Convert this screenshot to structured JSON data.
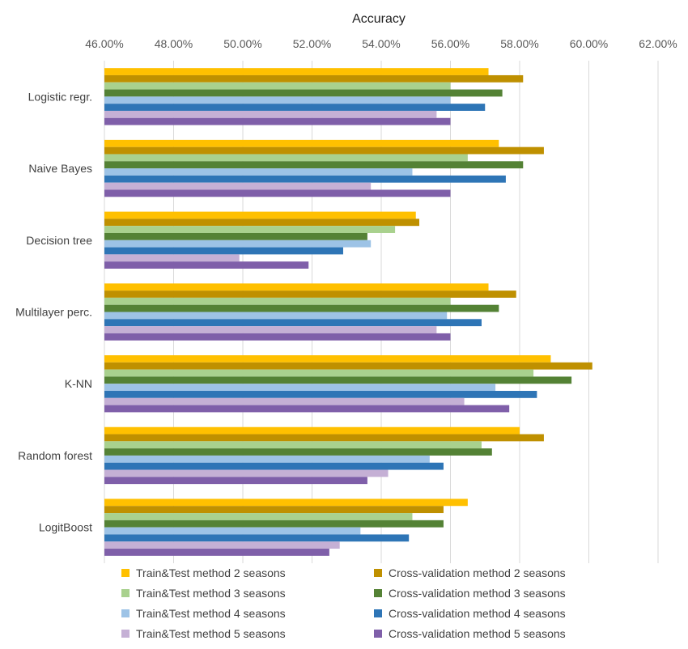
{
  "chart_data": {
    "type": "bar",
    "orientation": "horizontal",
    "title": "Accuracy",
    "xlim": [
      46,
      62
    ],
    "x_ticks": [
      "46.00%",
      "48.00%",
      "50.00%",
      "52.00%",
      "54.00%",
      "56.00%",
      "58.00%",
      "60.00%",
      "62.00%"
    ],
    "x_tick_values": [
      46,
      48,
      50,
      52,
      54,
      56,
      58,
      60,
      62
    ],
    "grid": "vertical",
    "legend_position": "bottom",
    "categories": [
      "Logistic regr.",
      "Naive Bayes",
      "Decision tree",
      "Multilayer perc.",
      "K-NN",
      "Random forest",
      "LogitBoost"
    ],
    "series": [
      {
        "name": "Train&Test method 2 seasons",
        "color": "#FFC000",
        "values": [
          57.1,
          57.4,
          55.0,
          57.1,
          58.9,
          58.0,
          56.5
        ]
      },
      {
        "name": "Cross-validation method 2 seasons",
        "color": "#BF9000",
        "values": [
          58.1,
          58.7,
          55.1,
          57.9,
          60.1,
          58.7,
          55.8
        ]
      },
      {
        "name": "Train&Test method 3 seasons",
        "color": "#A9D18E",
        "values": [
          56.0,
          56.5,
          54.4,
          56.0,
          58.4,
          56.9,
          54.9
        ]
      },
      {
        "name": "Cross-validation method 3 seasons",
        "color": "#548235",
        "values": [
          57.5,
          58.1,
          53.6,
          57.4,
          59.5,
          57.2,
          55.8
        ]
      },
      {
        "name": "Train&Test method 4 seasons",
        "color": "#9DC3E6",
        "values": [
          56.0,
          54.9,
          53.7,
          55.9,
          57.3,
          55.4,
          53.4
        ]
      },
      {
        "name": "Cross-validation method 4 seasons",
        "color": "#2E75B6",
        "values": [
          57.0,
          57.6,
          52.9,
          56.9,
          58.5,
          55.8,
          54.8
        ]
      },
      {
        "name": "Train&Test method 5 seasons",
        "color": "#C5B0D5",
        "values": [
          55.6,
          53.7,
          49.9,
          55.6,
          56.4,
          54.2,
          52.8
        ]
      },
      {
        "name": "Cross-validation method 5 seasons",
        "color": "#7F5FA9",
        "values": [
          56.0,
          56.0,
          51.9,
          56.0,
          57.7,
          53.6,
          52.5
        ]
      }
    ]
  }
}
